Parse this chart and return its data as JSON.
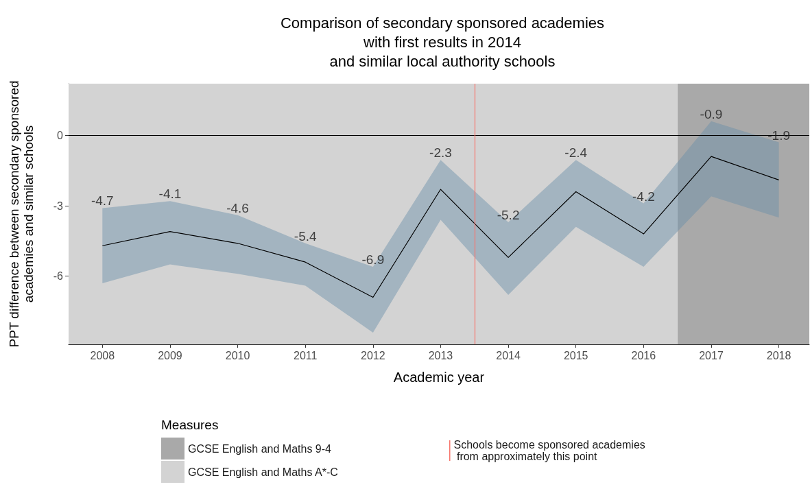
{
  "chart_data": {
    "type": "line",
    "title": "Comparison of secondary sponsored academies\nwith first results in 2014\nand similar local authority schools",
    "xlabel": "Academic year",
    "ylabel": "PPT difference between secondary sponsored\nacademies and similar schools",
    "legend_title": "Measures",
    "x": [
      2008,
      2009,
      2010,
      2011,
      2012,
      2013,
      2014,
      2015,
      2016,
      2017,
      2018
    ],
    "series": [
      {
        "color": "#000000",
        "values": [
          -4.7,
          -4.1,
          -4.6,
          -5.4,
          -6.9,
          -2.3,
          -5.2,
          -2.4,
          -4.2,
          -0.9,
          -1.9
        ],
        "lower": [
          -6.3,
          -5.5,
          -5.9,
          -6.4,
          -8.4,
          -3.6,
          -6.8,
          -3.9,
          -5.6,
          -2.6,
          -3.5
        ],
        "upper": [
          -3.1,
          -2.8,
          -3.4,
          -4.6,
          -5.6,
          -1.05,
          -3.7,
          -1.05,
          -2.9,
          0.6,
          -0.3
        ]
      }
    ],
    "xlim": [
      2007.5,
      2018.45
    ],
    "ylim": [
      -8.9,
      2.2
    ],
    "xticks": [
      2008,
      2009,
      2010,
      2011,
      2012,
      2013,
      2014,
      2015,
      2016,
      2017,
      2018
    ],
    "yticks": [
      -6,
      -3,
      0
    ],
    "ref_lines": [
      {
        "axis": "y",
        "value": 0,
        "color": "#000000"
      },
      {
        "axis": "x",
        "value": 2013.5,
        "label": "Schools become sponsored academies\n from approximately this point",
        "color": "#f8766d"
      }
    ],
    "bands": [
      {
        "axis": "x",
        "from": 2016.5,
        "to": 2018.45,
        "label": "GCSE English and Maths 9-4",
        "color": "#a9a9a9"
      },
      {
        "axis": "x",
        "from": 2007.5,
        "to": 2016.5,
        "label": "GCSE English and Maths A*-C",
        "color": "#d3d3d3"
      }
    ],
    "data_labels": true,
    "grid": false,
    "legend": "bottom",
    "marker": "none",
    "line_style": "solid"
  }
}
